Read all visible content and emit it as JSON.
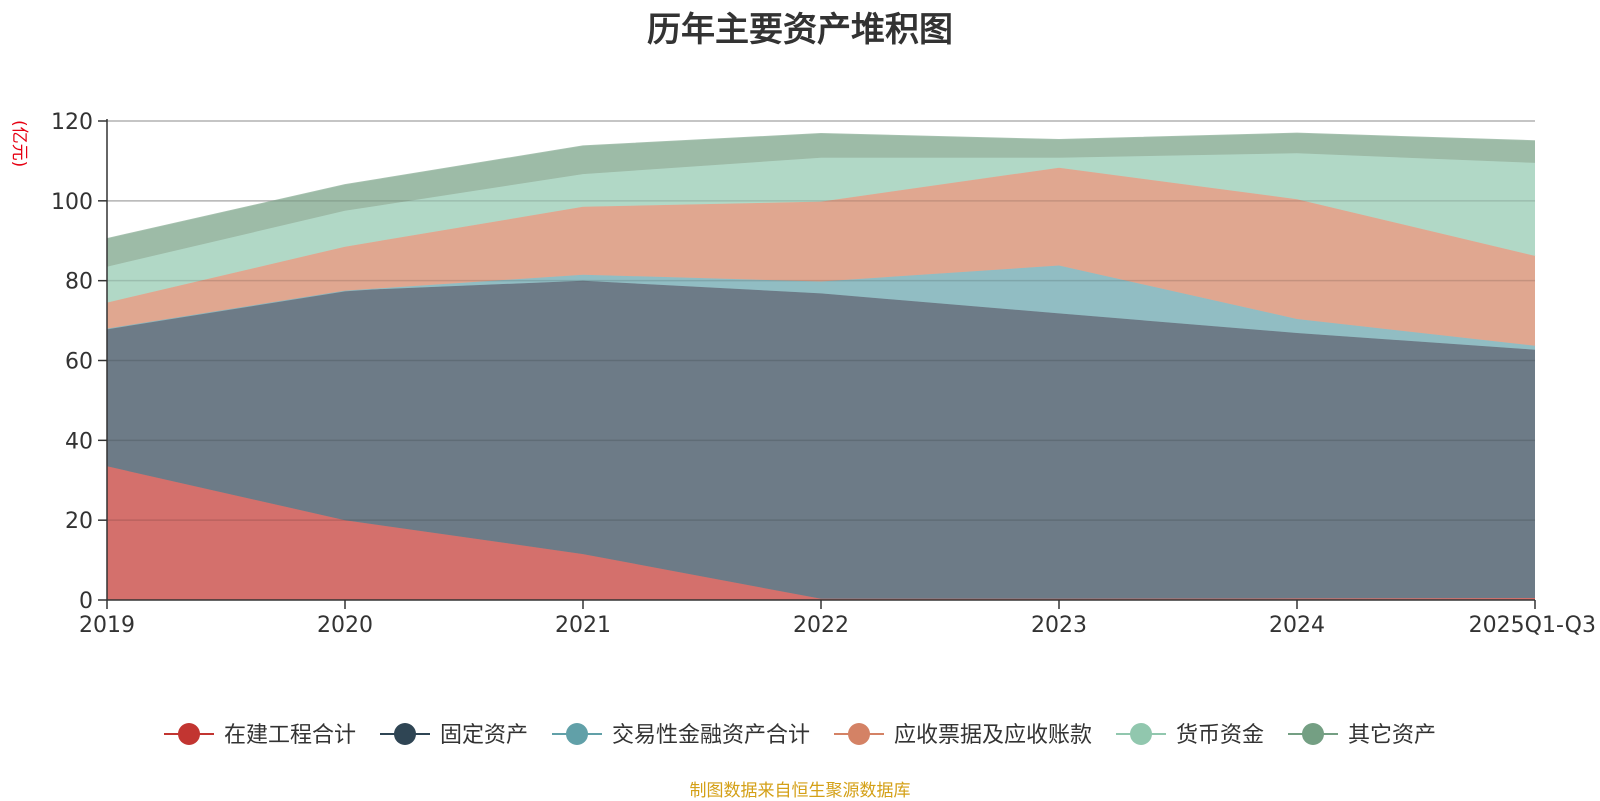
{
  "chart_data": {
    "type": "area",
    "stacked": true,
    "title": "历年主要资产堆积图",
    "unit_label": "(亿元)",
    "source_note": "制图数据来自恒生聚源数据库",
    "categories": [
      "2019",
      "2020",
      "2021",
      "2022",
      "2023",
      "2024",
      "2025Q1-Q3"
    ],
    "ylim": [
      0,
      120
    ],
    "yticks": [
      0,
      20,
      40,
      60,
      80,
      100,
      120
    ],
    "grid": true,
    "legend_position": "bottom",
    "series": [
      {
        "name": "在建工程合计",
        "color": "#c23531",
        "fill": "#d4706c",
        "values": [
          33.5,
          20.0,
          11.5,
          0.3,
          0.3,
          0.4,
          0.5
        ]
      },
      {
        "name": "固定资产",
        "color": "#2f4554",
        "fill": "#6d7b87",
        "values": [
          34.5,
          57.5,
          68.5,
          76.5,
          71.5,
          66.5,
          62.2
        ]
      },
      {
        "name": "交易性金融资产合计",
        "color": "#61a0a8",
        "fill": "#91bdc3",
        "values": [
          0.0,
          0.0,
          1.5,
          3.0,
          12.0,
          3.5,
          1.0
        ]
      },
      {
        "name": "应收票据及应收账款",
        "color": "#d48265",
        "fill": "#e0a790",
        "values": [
          6.5,
          11.0,
          17.0,
          20.0,
          24.5,
          30.0,
          22.5
        ]
      },
      {
        "name": "货币资金",
        "color": "#91c7ae",
        "fill": "#b1d8c6",
        "values": [
          9.0,
          9.0,
          8.2,
          11.0,
          2.5,
          11.5,
          23.3
        ]
      },
      {
        "name": "其它资产",
        "color": "#749f83",
        "fill": "#9dbba7",
        "values": [
          7.0,
          6.5,
          7.0,
          6.0,
          4.5,
          5.0,
          5.5
        ]
      }
    ]
  }
}
